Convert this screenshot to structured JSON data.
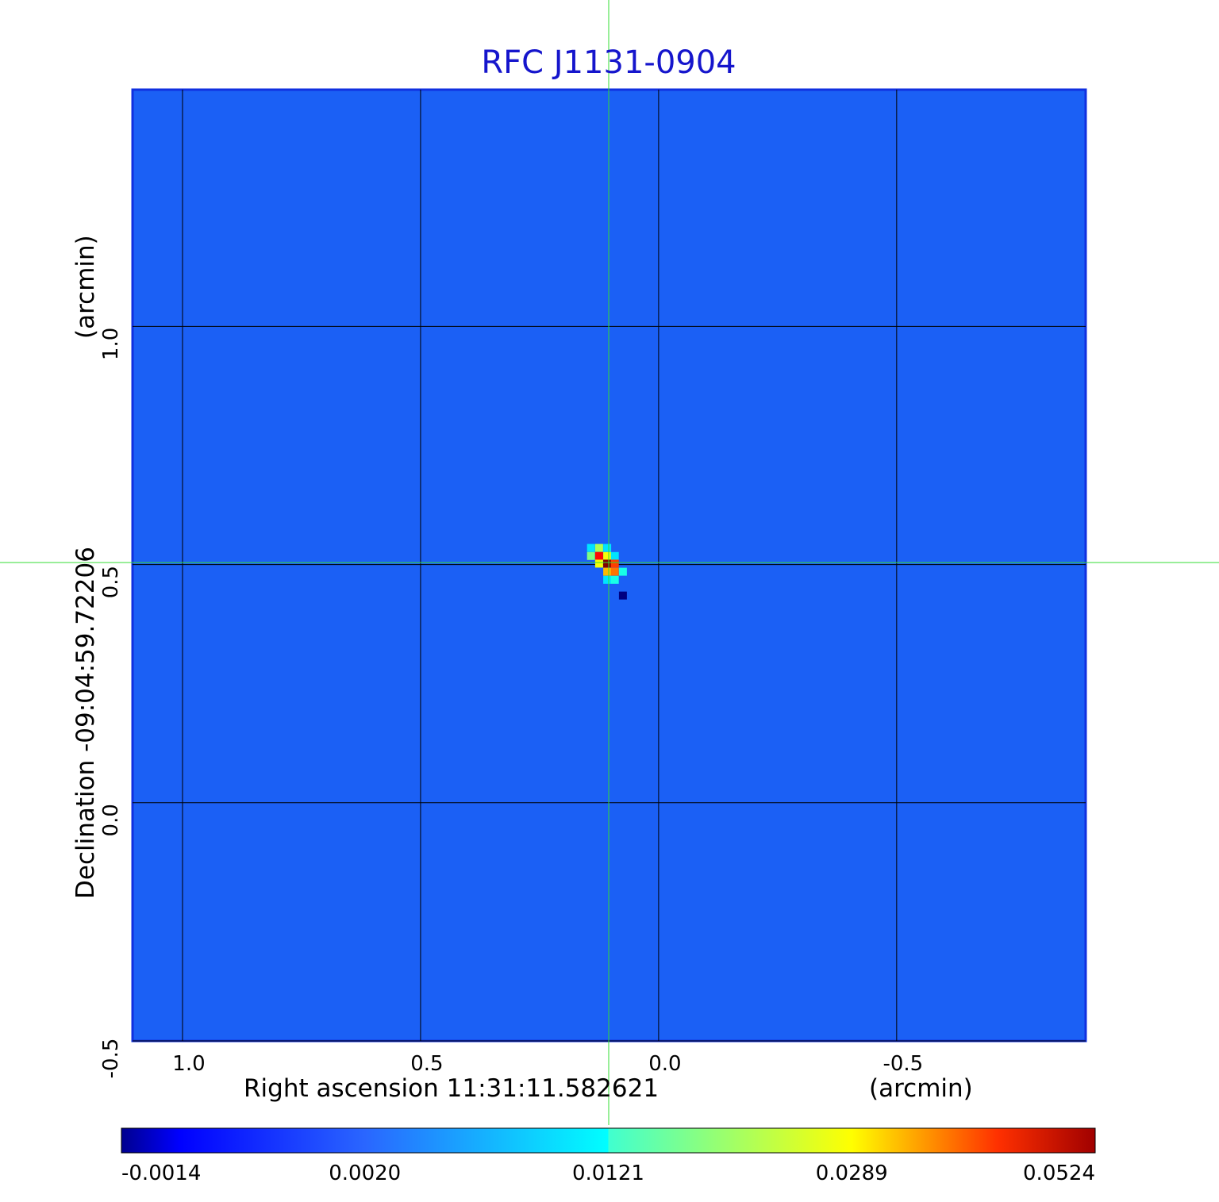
{
  "chart_data": {
    "type": "heatmap",
    "title": "RFC J1131-0904",
    "x_label": "Right ascension  11:31:11.582621",
    "x_unit": "(arcmin)",
    "y_label": "Declination  -09:04:59.72206",
    "y_unit": "(arcmin)",
    "xlim": [
      1.105,
      -0.897
    ],
    "ylim": [
      -0.5,
      1.497
    ],
    "xticks": [
      {
        "value": 1.0,
        "label": "1.0"
      },
      0.5,
      {
        "value": 0.0,
        "label": "0.0"
      },
      -0.5
    ],
    "yticks": [
      -0.5,
      {
        "value": 0.0,
        "label": "0.0"
      },
      0.5,
      {
        "value": 1.0,
        "label": "1.0"
      }
    ],
    "grid": true,
    "x": [
      0.142,
      0.125,
      0.108,
      0.142,
      0.125,
      0.108,
      0.092,
      0.125,
      0.108,
      0.092,
      0.108,
      0.092,
      0.075,
      0.108,
      0.092,
      0.075
    ],
    "y": [
      0.535,
      0.535,
      0.535,
      0.518,
      0.518,
      0.518,
      0.518,
      0.502,
      0.502,
      0.502,
      0.485,
      0.485,
      0.485,
      0.468,
      0.468,
      0.435
    ],
    "values": [
      0.006,
      0.015,
      0.006,
      0.012,
      0.04,
      0.02,
      0.006,
      0.02,
      0.0524,
      0.035,
      0.025,
      0.03,
      0.008,
      0.006,
      0.008,
      -0.0014
    ],
    "colorbar_ticks": [
      -0.0014,
      {
        "value": 0.002,
        "label": "0.0020"
      },
      0.0121,
      0.0289,
      0.0524
    ]
  }
}
